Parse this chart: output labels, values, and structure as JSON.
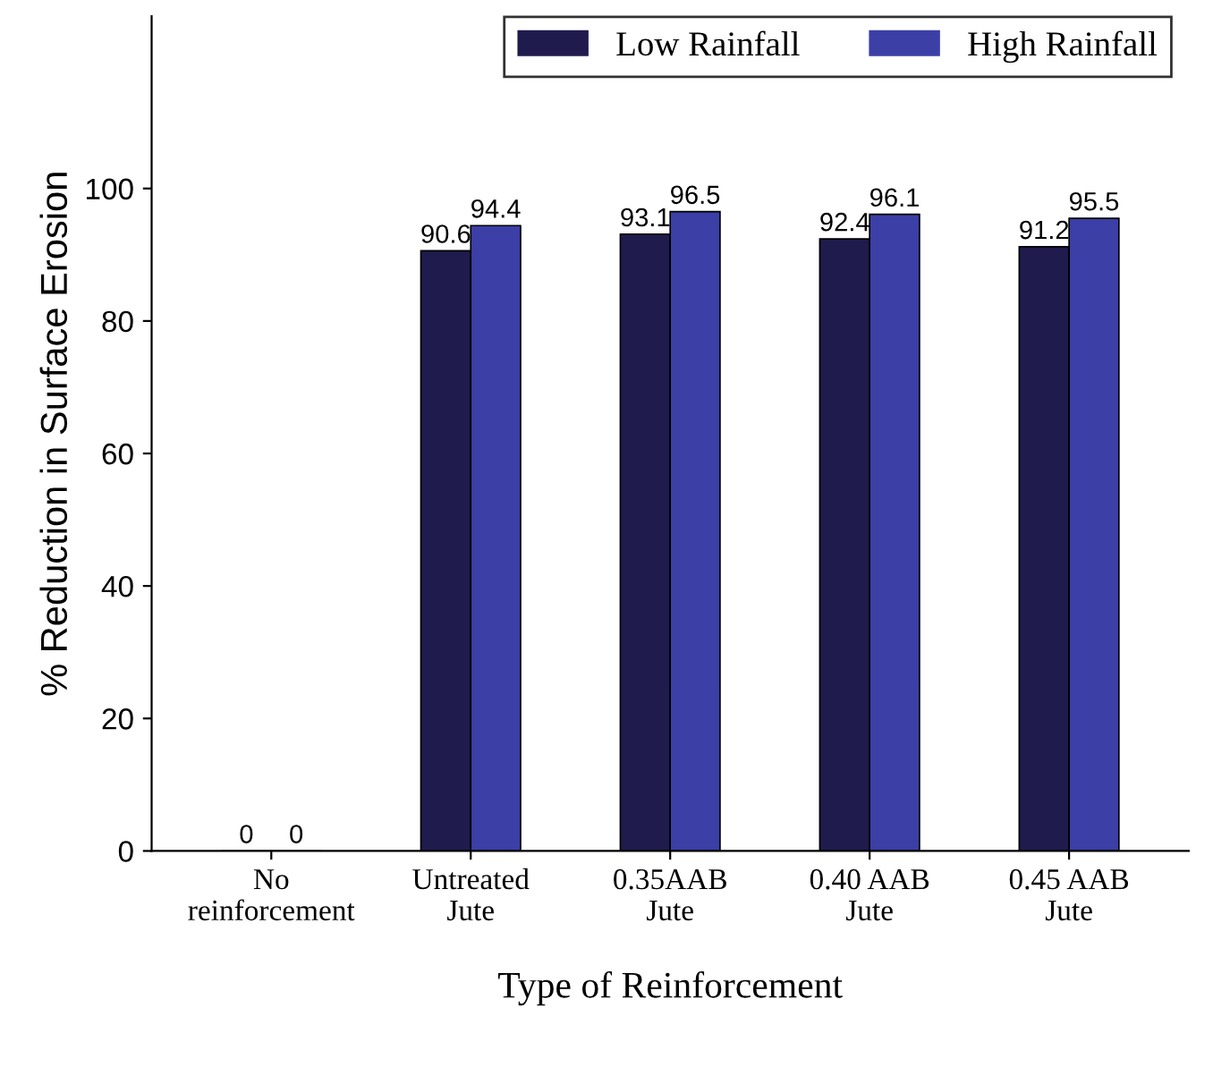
{
  "chart_data": {
    "type": "bar",
    "xlabel": "Type of Reinforcement",
    "ylabel": "% Reduction in Surface Erosion",
    "categories": [
      "No\nreinforcement",
      "Untreated\nJute",
      "0.35AAB\nJute",
      "0.40 AAB\nJute",
      "0.45 AAB\nJute"
    ],
    "series": [
      {
        "name": "Low Rainfall",
        "color": "#1f1b4d",
        "values": [
          0,
          90.6,
          93.1,
          92.4,
          91.2
        ]
      },
      {
        "name": "High Rainfall",
        "color": "#3b3fa6",
        "values": [
          0,
          94.4,
          96.5,
          96.1,
          95.5
        ]
      }
    ],
    "ylim": [
      0,
      126
    ],
    "yticks": [
      0,
      20,
      40,
      60,
      80,
      100
    ],
    "data_labels": true,
    "legend": "top right",
    "grid": false
  }
}
